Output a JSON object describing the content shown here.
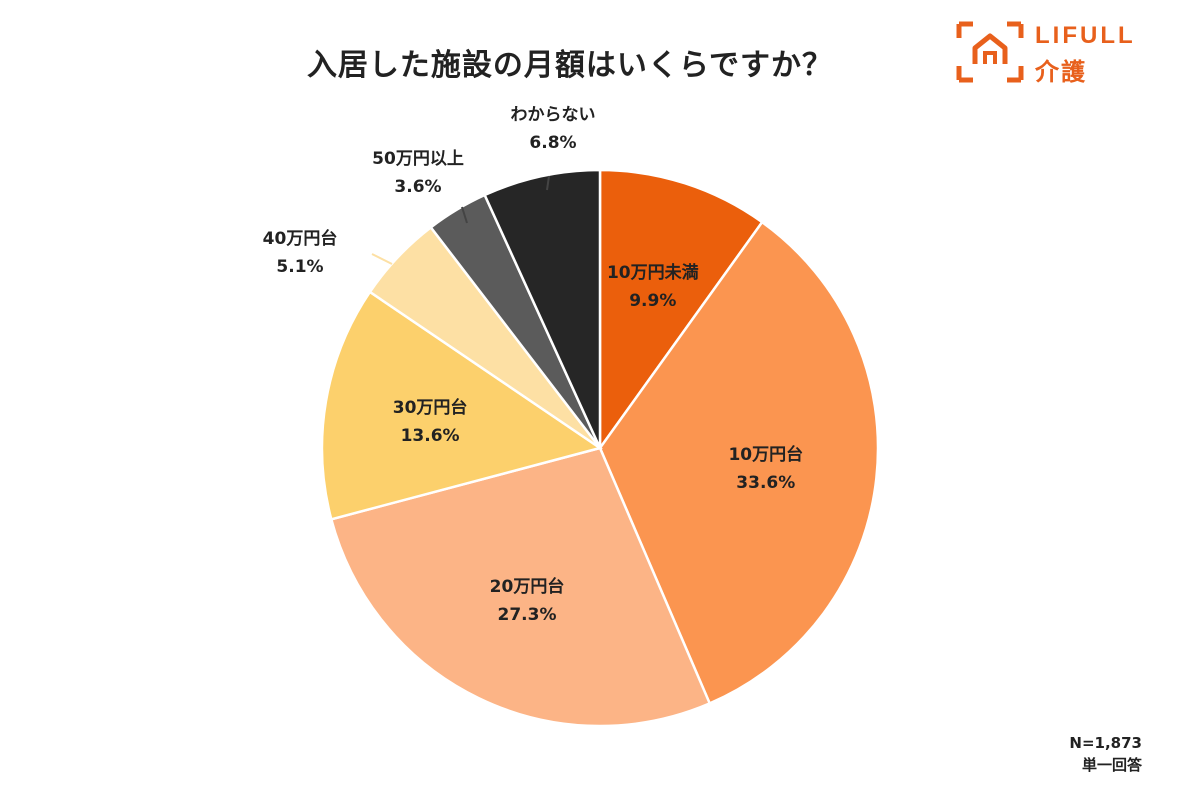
{
  "chart_data": {
    "type": "pie",
    "title": "入居した施設の月額はいくらですか？",
    "slices": [
      {
        "label": "10万円未満",
        "value": 9.9,
        "display": "9.9%",
        "color": "#eb5f0c",
        "text_color": "#222222"
      },
      {
        "label": "10万円台",
        "value": 33.6,
        "display": "33.6%",
        "color": "#fb9550",
        "text_color": "#222222"
      },
      {
        "label": "20万円台",
        "value": 27.3,
        "display": "27.3%",
        "color": "#fcb486",
        "text_color": "#222222"
      },
      {
        "label": "30万円台",
        "value": 13.6,
        "display": "13.6%",
        "color": "#fcd06c",
        "text_color": "#222222"
      },
      {
        "label": "40万円台",
        "value": 5.1,
        "display": "5.1%",
        "color": "#fde0a4",
        "text_color": "#222222"
      },
      {
        "label": "50万円以上",
        "value": 3.6,
        "display": "3.6%",
        "color": "#5b5b5b",
        "text_color": "#222222"
      },
      {
        "label": "わからない",
        "value": 6.8,
        "display": "6.8%",
        "color": "#262626",
        "text_color": "#222222"
      }
    ],
    "start_angle": "12 o'clock",
    "direction": "clockwise",
    "legend": "none"
  },
  "logo": {
    "name": "LIFULL",
    "sub": "介護",
    "color": "#e8601c",
    "icon": "house-bracket-icon"
  },
  "footnote": {
    "sample": "N=1,873",
    "answer_type": "単一回答"
  }
}
